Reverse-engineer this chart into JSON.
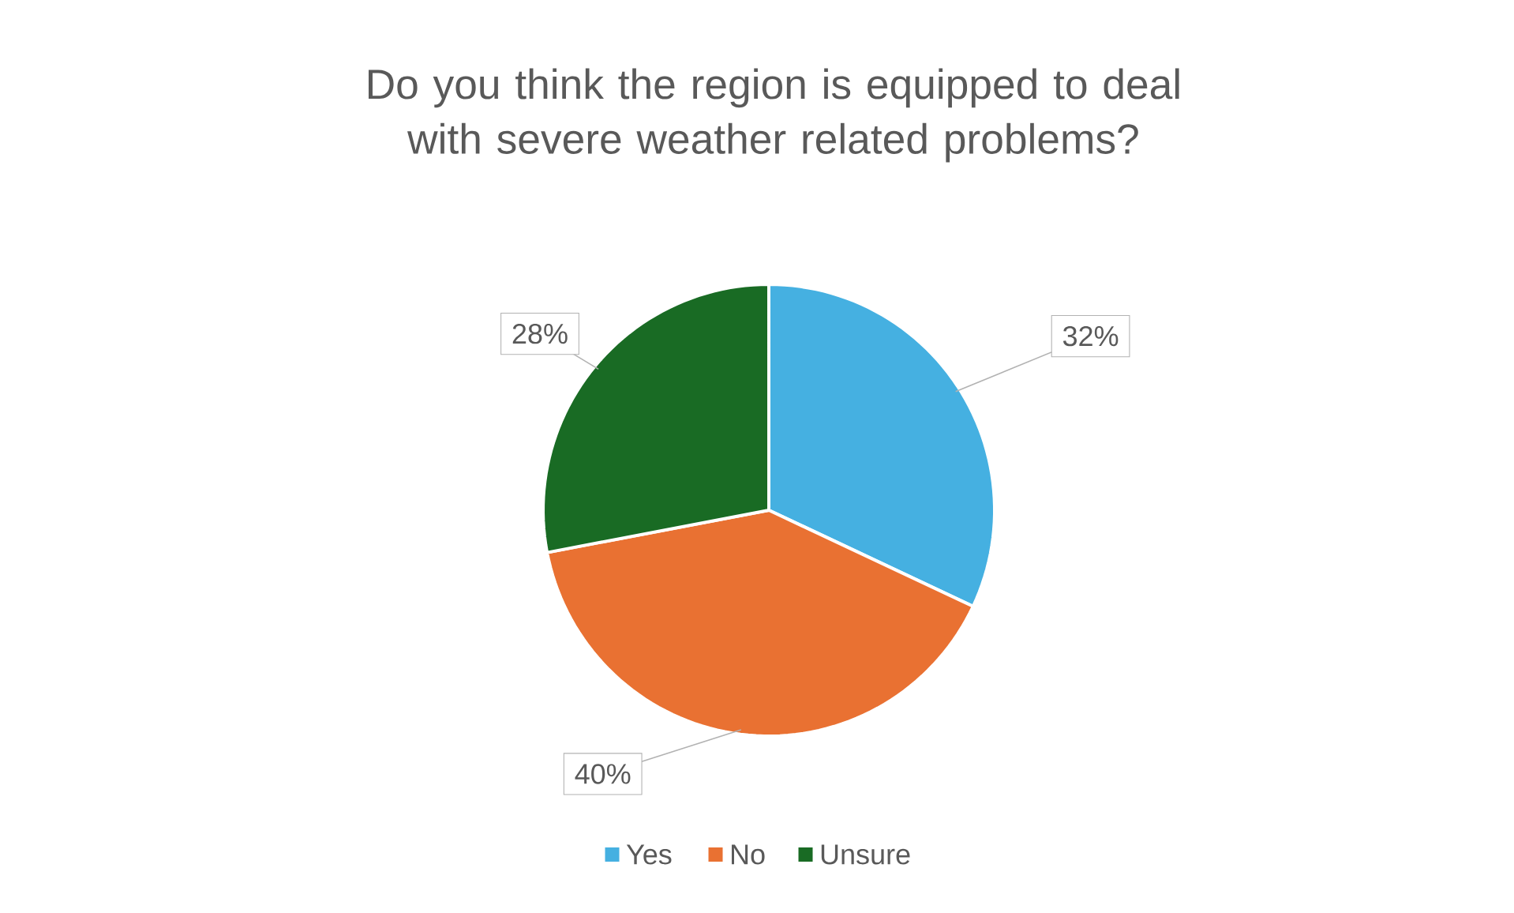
{
  "chart_data": {
    "type": "pie",
    "title": "Do you think the region is equipped to deal with severe weather related problems?",
    "categories": [
      "Yes",
      "No",
      "Unsure"
    ],
    "values": [
      32,
      40,
      28
    ],
    "colors": [
      "#45b0e1",
      "#e97132",
      "#196b24"
    ],
    "value_labels": [
      "32%",
      "40%",
      "28%"
    ],
    "legend": "bottom"
  }
}
